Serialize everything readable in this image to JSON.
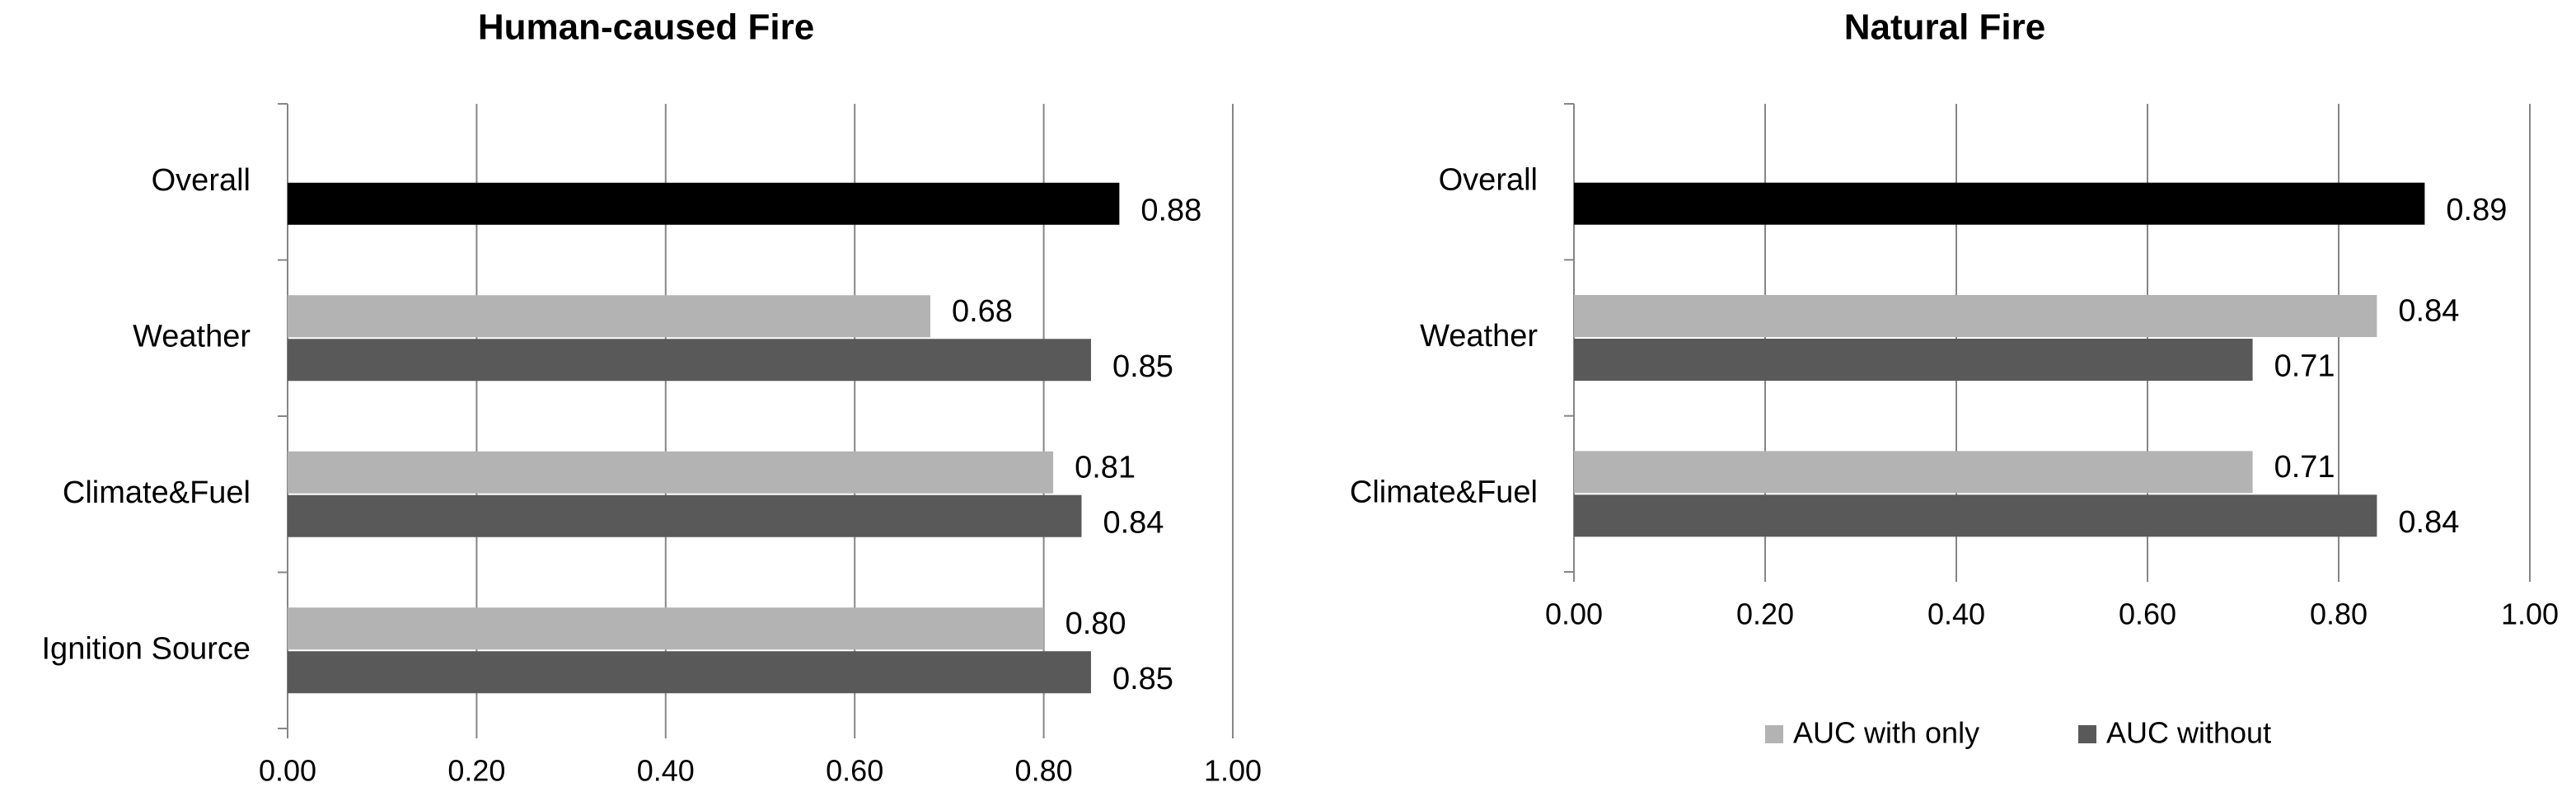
{
  "chart_data": [
    {
      "type": "bar",
      "orientation": "horizontal",
      "title": "Human-caused Fire",
      "categories": [
        "Overall",
        "Weather",
        "Climate&Fuel",
        "Ignition Source"
      ],
      "series": [
        {
          "name": "AUC with only",
          "color": "#b3b3b3",
          "values": [
            null,
            0.68,
            0.81,
            0.8
          ],
          "value_labels": [
            null,
            "0.68",
            "0.81",
            "0.80"
          ]
        },
        {
          "name": "AUC without",
          "color": "#595959",
          "colors": [
            "#000000",
            "#595959",
            "#595959",
            "#595959"
          ],
          "values": [
            0.88,
            0.85,
            0.84,
            0.85
          ],
          "value_labels": [
            "0.88",
            "0.85",
            "0.84",
            "0.85"
          ]
        }
      ],
      "xlim": [
        0,
        1
      ],
      "xticks": [
        {
          "value": 0,
          "label": "0.00"
        },
        {
          "value": 0.2,
          "label": "0.20"
        },
        {
          "value": 0.4,
          "label": "0.40"
        },
        {
          "value": 0.6,
          "label": "0.60"
        },
        {
          "value": 0.8,
          "label": "0.80"
        },
        {
          "value": 1,
          "label": "1.00"
        }
      ],
      "grid": true
    },
    {
      "type": "bar",
      "orientation": "horizontal",
      "title": "Natural Fire",
      "categories": [
        "Overall",
        "Weather",
        "Climate&Fuel"
      ],
      "series": [
        {
          "name": "AUC with only",
          "color": "#b3b3b3",
          "values": [
            null,
            0.84,
            0.71
          ],
          "value_labels": [
            null,
            "0.84",
            "0.71"
          ]
        },
        {
          "name": "AUC without",
          "color": "#595959",
          "colors": [
            "#000000",
            "#595959",
            "#595959"
          ],
          "values": [
            0.89,
            0.71,
            0.84
          ],
          "value_labels": [
            "0.89",
            "0.71",
            "0.84"
          ]
        }
      ],
      "xlim": [
        0,
        1
      ],
      "xticks": [
        {
          "value": 0,
          "label": "0.00"
        },
        {
          "value": 0.2,
          "label": "0.20"
        },
        {
          "value": 0.4,
          "label": "0.40"
        },
        {
          "value": 0.6,
          "label": "0.60"
        },
        {
          "value": 0.8,
          "label": "0.80"
        },
        {
          "value": 1,
          "label": "1.00"
        }
      ],
      "grid": true,
      "legend": "bottom"
    }
  ]
}
